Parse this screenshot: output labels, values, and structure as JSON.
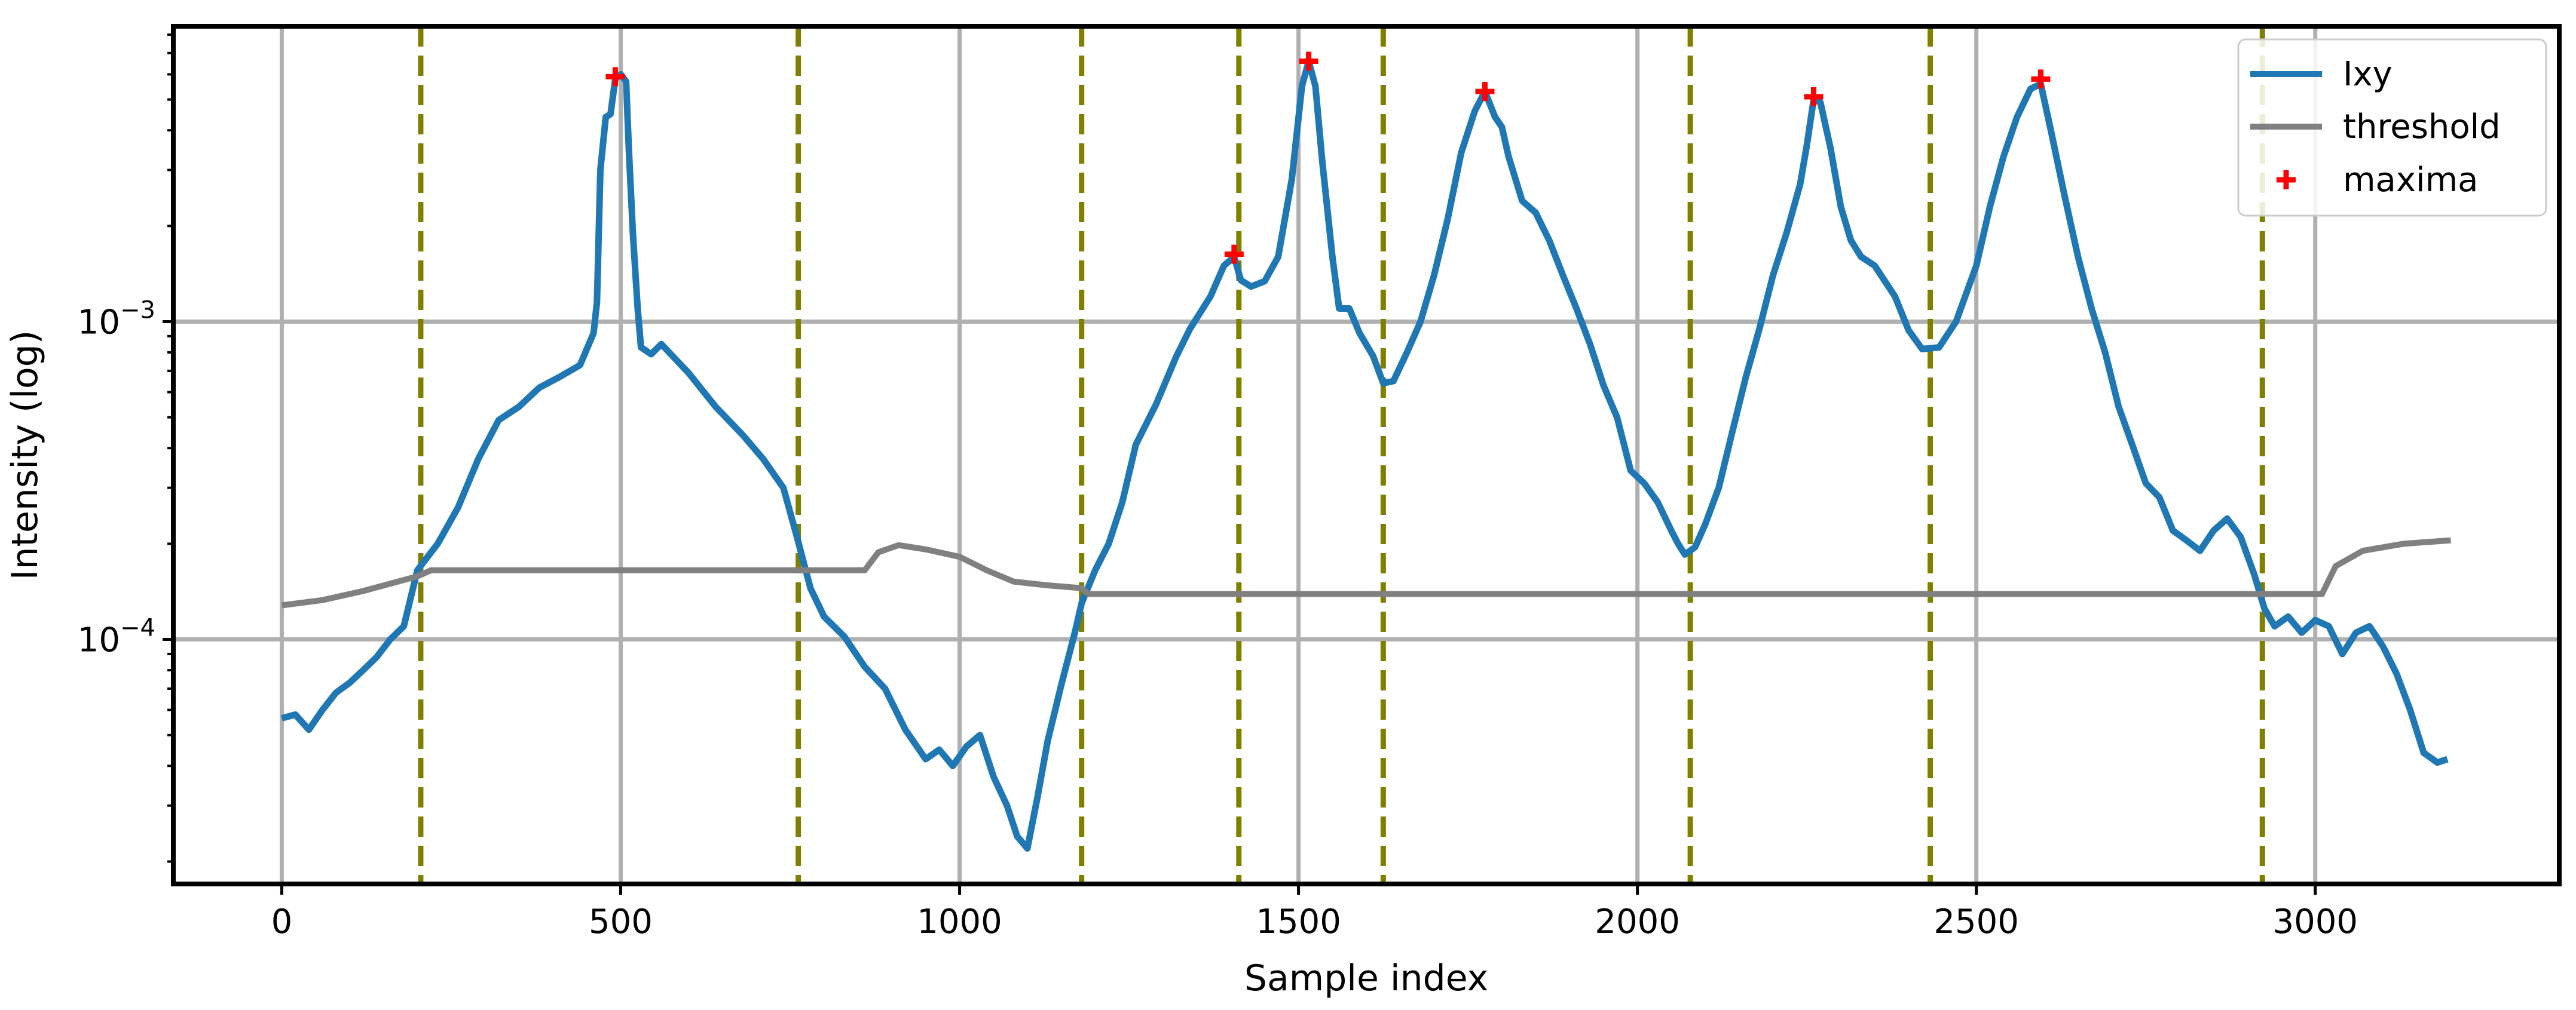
{
  "chart_data": {
    "type": "line",
    "title": "",
    "xlabel": "Sample index",
    "ylabel": "Intensity (log)",
    "y_scale": "log",
    "xlim": [
      -160,
      3360
    ],
    "ylim": [
      1.7e-05,
      0.0085
    ],
    "x_ticks": [
      0,
      500,
      1000,
      1500,
      2000,
      2500,
      3000
    ],
    "x_tick_labels": [
      "0",
      "500",
      "1000",
      "1500",
      "2000",
      "2500",
      "3000"
    ],
    "y_ticks": [
      0.0001,
      0.001
    ],
    "y_tick_labels": [
      {
        "base": "10",
        "exp": "−4"
      },
      {
        "base": "10",
        "exp": "−3"
      }
    ],
    "grid": true,
    "legend_position": "top-right",
    "series": [
      {
        "name": "Ixy",
        "color": "#1f77b4",
        "points": [
          [
            0,
            5.65e-05
          ],
          [
            20,
            5.8e-05
          ],
          [
            40,
            5.2e-05
          ],
          [
            60,
            6e-05
          ],
          [
            80,
            6.8e-05
          ],
          [
            100,
            7.3e-05
          ],
          [
            120,
            8e-05
          ],
          [
            140,
            8.8e-05
          ],
          [
            160,
            0.0001
          ],
          [
            180,
            0.00011
          ],
          [
            200,
            0.000165
          ],
          [
            230,
            0.0002
          ],
          [
            260,
            0.00026
          ],
          [
            290,
            0.00037
          ],
          [
            320,
            0.00049
          ],
          [
            350,
            0.00054
          ],
          [
            380,
            0.00062
          ],
          [
            410,
            0.00067
          ],
          [
            440,
            0.00073
          ],
          [
            460,
            0.00092
          ],
          [
            465,
            0.00115
          ],
          [
            470,
            0.003
          ],
          [
            478,
            0.0044
          ],
          [
            485,
            0.0045
          ],
          [
            492,
            0.0058
          ],
          [
            500,
            0.006
          ],
          [
            508,
            0.0057
          ],
          [
            512,
            0.0035
          ],
          [
            518,
            0.0019
          ],
          [
            525,
            0.0011
          ],
          [
            530,
            0.00083
          ],
          [
            545,
            0.00079
          ],
          [
            560,
            0.00085
          ],
          [
            600,
            0.00069
          ],
          [
            640,
            0.00054
          ],
          [
            680,
            0.00044
          ],
          [
            710,
            0.00037
          ],
          [
            740,
            0.0003
          ],
          [
            760,
            0.00021
          ],
          [
            780,
            0.000145
          ],
          [
            800,
            0.000118
          ],
          [
            830,
            0.000102
          ],
          [
            860,
            8.2e-05
          ],
          [
            890,
            7e-05
          ],
          [
            920,
            5.2e-05
          ],
          [
            950,
            4.2e-05
          ],
          [
            970,
            4.5e-05
          ],
          [
            990,
            4e-05
          ],
          [
            1010,
            4.6e-05
          ],
          [
            1030,
            5e-05
          ],
          [
            1050,
            3.7e-05
          ],
          [
            1070,
            3e-05
          ],
          [
            1085,
            2.4e-05
          ],
          [
            1100,
            2.2e-05
          ],
          [
            1115,
            3.2e-05
          ],
          [
            1130,
            4.8e-05
          ],
          [
            1150,
            7.2e-05
          ],
          [
            1170,
            0.000105
          ],
          [
            1180,
            0.00013
          ],
          [
            1200,
            0.000165
          ],
          [
            1220,
            0.0002
          ],
          [
            1240,
            0.00027
          ],
          [
            1260,
            0.00041
          ],
          [
            1290,
            0.00055
          ],
          [
            1320,
            0.00078
          ],
          [
            1340,
            0.00095
          ],
          [
            1370,
            0.0012
          ],
          [
            1390,
            0.0015
          ],
          [
            1405,
            0.0016
          ],
          [
            1415,
            0.00135
          ],
          [
            1430,
            0.00129
          ],
          [
            1450,
            0.00134
          ],
          [
            1470,
            0.0016
          ],
          [
            1490,
            0.0028
          ],
          [
            1505,
            0.0055
          ],
          [
            1515,
            0.0066
          ],
          [
            1525,
            0.0055
          ],
          [
            1535,
            0.0032
          ],
          [
            1550,
            0.0016
          ],
          [
            1560,
            0.0011
          ],
          [
            1575,
            0.0011
          ],
          [
            1590,
            0.00092
          ],
          [
            1610,
            0.00078
          ],
          [
            1625,
            0.00064
          ],
          [
            1640,
            0.00065
          ],
          [
            1660,
            0.0008
          ],
          [
            1680,
            0.001
          ],
          [
            1700,
            0.0014
          ],
          [
            1720,
            0.0021
          ],
          [
            1740,
            0.0034
          ],
          [
            1760,
            0.0046
          ],
          [
            1775,
            0.0053
          ],
          [
            1790,
            0.0044
          ],
          [
            1800,
            0.0041
          ],
          [
            1810,
            0.0033
          ],
          [
            1830,
            0.0024
          ],
          [
            1850,
            0.0022
          ],
          [
            1870,
            0.0018
          ],
          [
            1890,
            0.0014
          ],
          [
            1910,
            0.0011
          ],
          [
            1930,
            0.00085
          ],
          [
            1950,
            0.00063
          ],
          [
            1970,
            0.0005
          ],
          [
            1990,
            0.00034
          ],
          [
            2010,
            0.00031
          ],
          [
            2030,
            0.00027
          ],
          [
            2050,
            0.00022
          ],
          [
            2060,
            0.0002
          ],
          [
            2070,
            0.000185
          ],
          [
            2085,
            0.000195
          ],
          [
            2100,
            0.00023
          ],
          [
            2120,
            0.0003
          ],
          [
            2140,
            0.00045
          ],
          [
            2160,
            0.00067
          ],
          [
            2180,
            0.00095
          ],
          [
            2200,
            0.0014
          ],
          [
            2220,
            0.0019
          ],
          [
            2240,
            0.0027
          ],
          [
            2250,
            0.0036
          ],
          [
            2260,
            0.005
          ],
          [
            2270,
            0.0049
          ],
          [
            2285,
            0.0035
          ],
          [
            2300,
            0.0023
          ],
          [
            2315,
            0.0018
          ],
          [
            2330,
            0.0016
          ],
          [
            2350,
            0.0015
          ],
          [
            2380,
            0.0012
          ],
          [
            2400,
            0.00094
          ],
          [
            2420,
            0.00082
          ],
          [
            2445,
            0.00083
          ],
          [
            2470,
            0.001
          ],
          [
            2500,
            0.0015
          ],
          [
            2520,
            0.0023
          ],
          [
            2540,
            0.0033
          ],
          [
            2560,
            0.0044
          ],
          [
            2580,
            0.0054
          ],
          [
            2595,
            0.0056
          ],
          [
            2610,
            0.004
          ],
          [
            2630,
            0.0025
          ],
          [
            2650,
            0.0016
          ],
          [
            2670,
            0.0011
          ],
          [
            2690,
            0.0008
          ],
          [
            2710,
            0.00054
          ],
          [
            2730,
            0.00041
          ],
          [
            2750,
            0.00031
          ],
          [
            2770,
            0.00028
          ],
          [
            2790,
            0.00022
          ],
          [
            2810,
            0.000205
          ],
          [
            2830,
            0.00019
          ],
          [
            2850,
            0.00022
          ],
          [
            2870,
            0.00024
          ],
          [
            2890,
            0.00021
          ],
          [
            2910,
            0.00016
          ],
          [
            2925,
            0.000125
          ],
          [
            2940,
            0.00011
          ],
          [
            2960,
            0.000118
          ],
          [
            2980,
            0.000105
          ],
          [
            3000,
            0.000115
          ],
          [
            3020,
            0.00011
          ],
          [
            3040,
            9e-05
          ],
          [
            3060,
            0.000105
          ],
          [
            3080,
            0.00011
          ],
          [
            3100,
            9.5e-05
          ],
          [
            3120,
            7.8e-05
          ],
          [
            3140,
            6e-05
          ],
          [
            3160,
            4.4e-05
          ],
          [
            3180,
            4.1e-05
          ],
          [
            3195,
            4.2e-05
          ]
        ]
      },
      {
        "name": "threshold",
        "color": "#808080",
        "points": [
          [
            0,
            0.000128
          ],
          [
            60,
            0.000133
          ],
          [
            120,
            0.000142
          ],
          [
            200,
            0.000158
          ],
          [
            220,
            0.000165
          ],
          [
            860,
            0.000165
          ],
          [
            880,
            0.000188
          ],
          [
            910,
            0.000198
          ],
          [
            950,
            0.000192
          ],
          [
            1000,
            0.000182
          ],
          [
            1040,
            0.000165
          ],
          [
            1080,
            0.000152
          ],
          [
            1130,
            0.000148
          ],
          [
            1180,
            0.000145
          ],
          [
            1190,
            0.000139
          ],
          [
            3010,
            0.000139
          ],
          [
            3030,
            0.00017
          ],
          [
            3070,
            0.00019
          ],
          [
            3130,
            0.0002
          ],
          [
            3200,
            0.000205
          ]
        ]
      }
    ],
    "maxima": {
      "name": "maxima",
      "color": "#ff0000",
      "points": [
        [
          492,
          0.0059
        ],
        [
          1405,
          0.00163
        ],
        [
          1515,
          0.0066
        ],
        [
          1775,
          0.0053
        ],
        [
          2260,
          0.0051
        ],
        [
          2595,
          0.0058
        ]
      ]
    },
    "vertical_lines": {
      "color": "#808000",
      "x": [
        205,
        762,
        1180,
        1412,
        1625,
        2078,
        2432,
        2922
      ]
    }
  }
}
